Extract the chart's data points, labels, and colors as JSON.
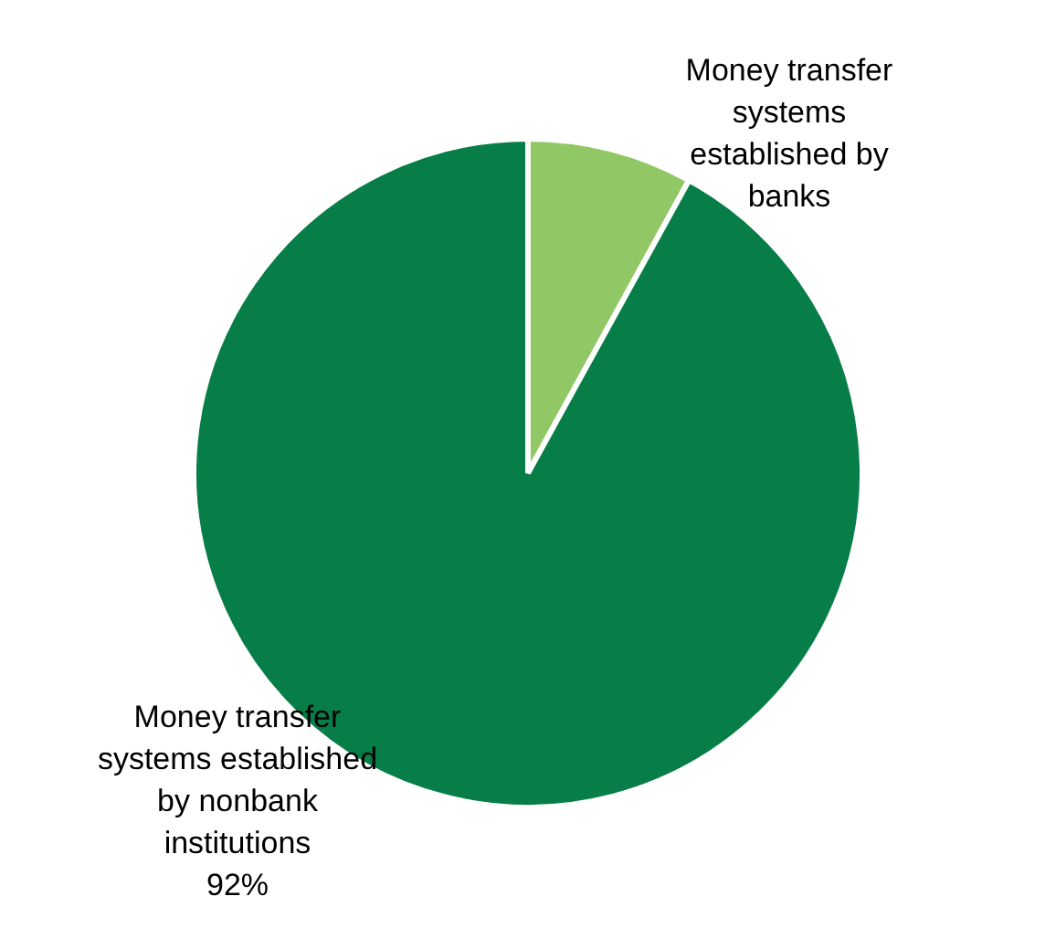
{
  "chart_data": {
    "type": "pie",
    "categories": [
      "Money transfer systems established by banks",
      "Money transfer systems established by nonbank institutions"
    ],
    "values": [
      8,
      92
    ],
    "colors": [
      "#92c765",
      "#077d47"
    ],
    "value_labels": [
      null,
      "92%"
    ],
    "legend": false
  }
}
